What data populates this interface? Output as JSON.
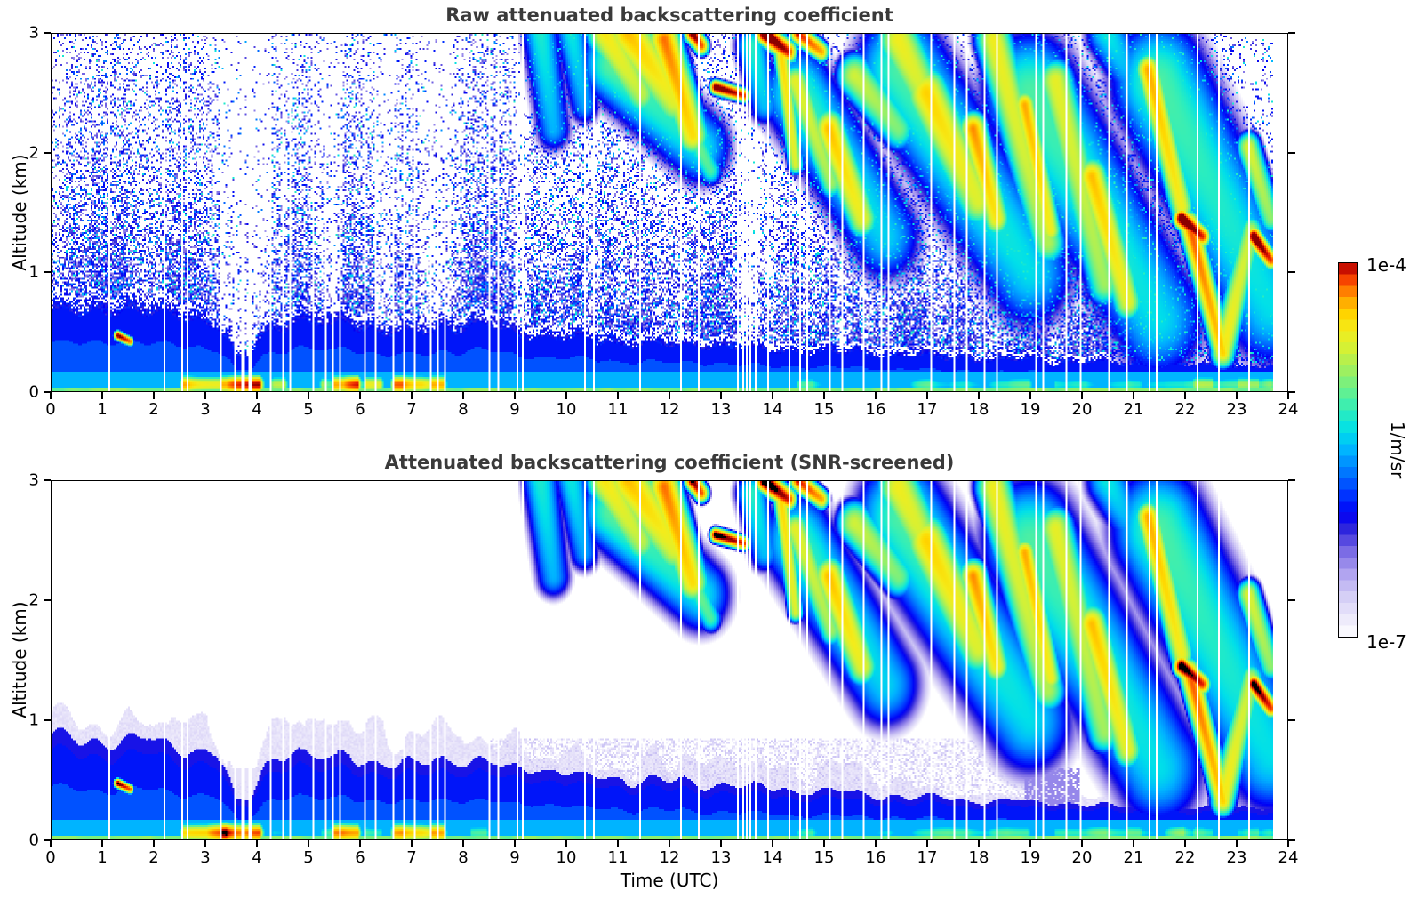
{
  "chart_data": {
    "type": "heatmap",
    "panels": [
      {
        "id": "raw",
        "title": "Raw attenuated backscattering coefficient",
        "noise": true,
        "saturate_black": false
      },
      {
        "id": "screened",
        "title": "Attenuated backscattering coefficient (SNR-screened)",
        "noise": false,
        "saturate_black": true
      }
    ],
    "x": {
      "label": "Time (UTC)",
      "min": 0,
      "max": 24,
      "data_end": 23.72,
      "tick_labels": [
        "0",
        "1",
        "2",
        "3",
        "4",
        "5",
        "6",
        "7",
        "8",
        "9",
        "10",
        "11",
        "12",
        "13",
        "14",
        "15",
        "16",
        "17",
        "18",
        "19",
        "20",
        "21",
        "22",
        "23",
        "24"
      ]
    },
    "y": {
      "label": "Altitude (km)",
      "min": 0,
      "max": 3,
      "tick_labels": [
        "0",
        "1",
        "2",
        "3"
      ]
    },
    "colorbar": {
      "units": "1/m/sr",
      "max_label": "1e-4",
      "min_label": "1e-7",
      "scale": "log10",
      "min_exp": -7,
      "max_exp": -4,
      "steps": 33,
      "stops": [
        [
          0.0,
          "#ffffff"
        ],
        [
          0.06,
          "#e9e5fa"
        ],
        [
          0.12,
          "#cfc8f5"
        ],
        [
          0.18,
          "#a89aee"
        ],
        [
          0.24,
          "#6f5fe2"
        ],
        [
          0.29,
          "#2a22dd"
        ],
        [
          0.33,
          "#0000f5"
        ],
        [
          0.38,
          "#0033ff"
        ],
        [
          0.44,
          "#0077ff"
        ],
        [
          0.5,
          "#00b3ff"
        ],
        [
          0.55,
          "#00dfe9"
        ],
        [
          0.6,
          "#2aedbf"
        ],
        [
          0.66,
          "#67f08d"
        ],
        [
          0.72,
          "#a5f05b"
        ],
        [
          0.77,
          "#d3f136"
        ],
        [
          0.82,
          "#f3ec1b"
        ],
        [
          0.86,
          "#ffd800"
        ],
        [
          0.9,
          "#ffa800"
        ],
        [
          0.93,
          "#ff7300"
        ],
        [
          0.96,
          "#f43b00"
        ],
        [
          0.98,
          "#d91400"
        ],
        [
          1.0,
          "#8b0000"
        ]
      ]
    },
    "model": {
      "seed": 1337,
      "boundary_layer": {
        "height_points": [
          [
            0,
            0.82
          ],
          [
            0.7,
            0.85
          ],
          [
            1.4,
            0.8
          ],
          [
            2.1,
            0.82
          ],
          [
            2.7,
            0.76
          ],
          [
            3.2,
            0.7
          ],
          [
            3.45,
            0.5
          ],
          [
            3.6,
            0.32
          ],
          [
            3.85,
            0.35
          ],
          [
            4.1,
            0.62
          ],
          [
            4.6,
            0.72
          ],
          [
            5.2,
            0.68
          ],
          [
            5.8,
            0.72
          ],
          [
            6.4,
            0.62
          ],
          [
            7.0,
            0.6
          ],
          [
            7.6,
            0.7
          ],
          [
            8.2,
            0.66
          ],
          [
            9.0,
            0.6
          ],
          [
            10,
            0.55
          ],
          [
            11,
            0.5
          ],
          [
            12,
            0.48
          ],
          [
            13,
            0.46
          ],
          [
            14,
            0.42
          ],
          [
            15,
            0.4
          ],
          [
            16,
            0.38
          ],
          [
            17,
            0.35
          ],
          [
            18,
            0.33
          ],
          [
            19,
            0.31
          ],
          [
            20,
            0.29
          ],
          [
            21,
            0.27
          ],
          [
            22,
            0.26
          ],
          [
            23,
            0.26
          ],
          [
            24,
            0.26
          ]
        ],
        "log10_top": -6.08,
        "log10_core": -5.95,
        "log10_low": -5.78,
        "log10_subsurface": -5.5,
        "log10_surface": -4.95,
        "fringe_log10": -6.8,
        "fringe_factor": 1.2
      },
      "surface_hotspots": [
        [
          2.55,
          3.3,
          -4.1
        ],
        [
          3.3,
          4.05,
          -3.85
        ],
        [
          4.3,
          4.55,
          -4.6
        ],
        [
          5.25,
          5.5,
          -4.5
        ],
        [
          5.5,
          5.95,
          -3.95
        ],
        [
          6.1,
          6.4,
          -4.3
        ],
        [
          6.65,
          7.3,
          -4.15
        ],
        [
          7.35,
          7.6,
          -3.88
        ],
        [
          8.15,
          8.45,
          -4.75
        ],
        [
          14.5,
          19.0,
          -4.95
        ],
        [
          19.5,
          23.7,
          -4.75
        ],
        [
          20.9,
          21.15,
          -4.45
        ],
        [
          22.2,
          22.55,
          -4.4
        ],
        [
          23.05,
          23.45,
          -4.5
        ]
      ],
      "clouds": [
        [
          1.28,
          0.47,
          1.52,
          0.42,
          0.06,
          -3.9
        ],
        [
          9.5,
          3.0,
          9.75,
          2.2,
          0.33,
          -5.25
        ],
        [
          10.1,
          3.0,
          10.35,
          2.4,
          0.3,
          -5.3
        ],
        [
          10.75,
          3.0,
          11.45,
          2.5,
          0.3,
          -4.5
        ],
        [
          11.2,
          3.0,
          12.1,
          2.45,
          0.36,
          -4.35
        ],
        [
          11.9,
          2.95,
          12.45,
          2.15,
          0.26,
          -4.2
        ],
        [
          12.25,
          2.35,
          12.8,
          1.85,
          0.2,
          -4.85
        ],
        [
          10.9,
          2.75,
          12.6,
          2.05,
          0.55,
          -5.05
        ],
        [
          12.9,
          2.55,
          13.45,
          2.48,
          0.09,
          -3.85
        ],
        [
          12.45,
          3.0,
          12.62,
          2.9,
          0.12,
          -3.9
        ],
        [
          13.6,
          2.9,
          13.85,
          2.4,
          0.3,
          -5.2
        ],
        [
          13.85,
          3.0,
          14.3,
          2.85,
          0.14,
          -3.8
        ],
        [
          14.5,
          3.0,
          14.95,
          2.85,
          0.13,
          -4.05
        ],
        [
          14.15,
          2.9,
          14.45,
          1.9,
          0.13,
          -4.4
        ],
        [
          14.45,
          2.6,
          15.15,
          1.75,
          0.22,
          -4.6
        ],
        [
          15.1,
          2.2,
          15.75,
          1.45,
          0.26,
          -4.35
        ],
        [
          15.6,
          2.65,
          16.45,
          2.2,
          0.3,
          -4.7
        ],
        [
          16.45,
          2.95,
          17.3,
          2.2,
          0.35,
          -4.55
        ],
        [
          17.0,
          2.5,
          18.0,
          1.6,
          0.35,
          -4.4
        ],
        [
          17.9,
          2.2,
          18.35,
          1.45,
          0.22,
          -4.25
        ],
        [
          18.3,
          2.95,
          19.35,
          1.25,
          0.3,
          -4.55
        ],
        [
          18.9,
          2.4,
          19.4,
          1.35,
          0.18,
          -4.3
        ],
        [
          19.5,
          2.6,
          20.45,
          0.9,
          0.3,
          -4.6
        ],
        [
          20.2,
          1.8,
          20.9,
          0.75,
          0.25,
          -4.35
        ],
        [
          20.5,
          3.0,
          21.0,
          2.6,
          0.4,
          -5.3
        ],
        [
          21.3,
          2.7,
          21.95,
          1.55,
          0.2,
          -4.3
        ],
        [
          21.95,
          1.45,
          22.35,
          1.3,
          0.13,
          -3.82
        ],
        [
          22.1,
          1.4,
          22.75,
          0.32,
          0.17,
          -4.15
        ],
        [
          22.75,
          0.32,
          23.3,
          1.35,
          0.2,
          -4.5
        ],
        [
          23.35,
          1.3,
          23.68,
          1.1,
          0.12,
          -3.85
        ],
        [
          23.25,
          2.05,
          23.68,
          1.45,
          0.2,
          -4.65
        ],
        [
          14.5,
          2.5,
          16.2,
          1.3,
          0.65,
          -5.15
        ],
        [
          16.5,
          2.7,
          19.0,
          1.0,
          0.8,
          -5.1
        ],
        [
          19.0,
          2.5,
          21.5,
          0.6,
          0.85,
          -5.1
        ],
        [
          21.5,
          2.6,
          23.68,
          0.7,
          0.85,
          -5.1
        ]
      ],
      "gaps": [
        [
          1.12,
          0.035
        ],
        [
          2.2,
          0.03
        ],
        [
          2.52,
          0.03
        ],
        [
          2.63,
          0.03
        ],
        [
          3.0,
          0.03
        ],
        [
          3.28,
          0.035
        ],
        [
          3.58,
          0.04
        ],
        [
          3.72,
          0.05
        ],
        [
          3.86,
          0.04
        ],
        [
          4.07,
          0.03
        ],
        [
          4.27,
          0.035
        ],
        [
          4.5,
          0.03
        ],
        [
          4.63,
          0.03
        ],
        [
          5.08,
          0.03
        ],
        [
          5.33,
          0.035
        ],
        [
          5.46,
          0.03
        ],
        [
          5.59,
          0.03
        ],
        [
          5.76,
          0.03
        ],
        [
          6.1,
          0.03
        ],
        [
          6.29,
          0.035
        ],
        [
          6.45,
          0.03
        ],
        [
          6.63,
          0.03
        ],
        [
          6.85,
          0.03
        ],
        [
          7.06,
          0.03
        ],
        [
          7.37,
          0.035
        ],
        [
          7.51,
          0.03
        ],
        [
          7.63,
          0.03
        ],
        [
          8.07,
          0.03
        ],
        [
          8.51,
          0.035
        ],
        [
          8.67,
          0.03
        ],
        [
          9.06,
          0.03
        ],
        [
          9.15,
          0.03
        ],
        [
          10.36,
          0.035
        ],
        [
          10.53,
          0.03
        ],
        [
          11.42,
          0.03
        ],
        [
          12.22,
          0.03
        ],
        [
          12.57,
          0.03
        ],
        [
          13.32,
          0.03
        ],
        [
          13.44,
          0.035
        ],
        [
          13.5,
          0.03
        ],
        [
          13.58,
          0.03
        ],
        [
          13.66,
          0.03
        ],
        [
          13.92,
          0.03
        ],
        [
          14.32,
          0.035
        ],
        [
          14.52,
          0.03
        ],
        [
          14.67,
          0.03
        ],
        [
          15.12,
          0.03
        ],
        [
          15.37,
          0.03
        ],
        [
          15.77,
          0.035
        ],
        [
          16.12,
          0.03
        ],
        [
          16.27,
          0.03
        ],
        [
          16.62,
          0.03
        ],
        [
          17.07,
          0.035
        ],
        [
          17.52,
          0.03
        ],
        [
          17.77,
          0.03
        ],
        [
          18.12,
          0.03
        ],
        [
          18.37,
          0.035
        ],
        [
          18.62,
          0.03
        ],
        [
          19.12,
          0.03
        ],
        [
          19.27,
          0.03
        ],
        [
          19.72,
          0.035
        ],
        [
          19.97,
          0.03
        ],
        [
          20.52,
          0.03
        ],
        [
          20.87,
          0.03
        ],
        [
          21.32,
          0.035
        ],
        [
          21.47,
          0.03
        ],
        [
          22.27,
          0.03
        ],
        [
          22.67,
          0.035
        ],
        [
          23.07,
          0.03
        ],
        [
          23.27,
          0.03
        ]
      ],
      "noise": {
        "base": 0.12,
        "bl_boost": 0.6,
        "bl_scale": 0.95,
        "cloud_boost": 0.4,
        "quiet_columns": [
          [
            3.3,
            4.25,
            0.3
          ],
          [
            5.15,
            5.65,
            0.5
          ],
          [
            6.3,
            6.65,
            0.55
          ],
          [
            7.15,
            7.75,
            0.45
          ],
          [
            9.0,
            9.3,
            0.6
          ],
          [
            13.35,
            13.75,
            0.5
          ]
        ]
      },
      "pale_band": {
        "t0": 8.5,
        "t1": 19.8,
        "z0": 0.18,
        "z1": 0.85
      },
      "purple_patch": [
        18.9,
        20.0,
        0.15,
        0.6,
        -6.4
      ],
      "bl_notch_fill": [
        3.45,
        4.0,
        0.6,
        -6.8
      ]
    }
  }
}
